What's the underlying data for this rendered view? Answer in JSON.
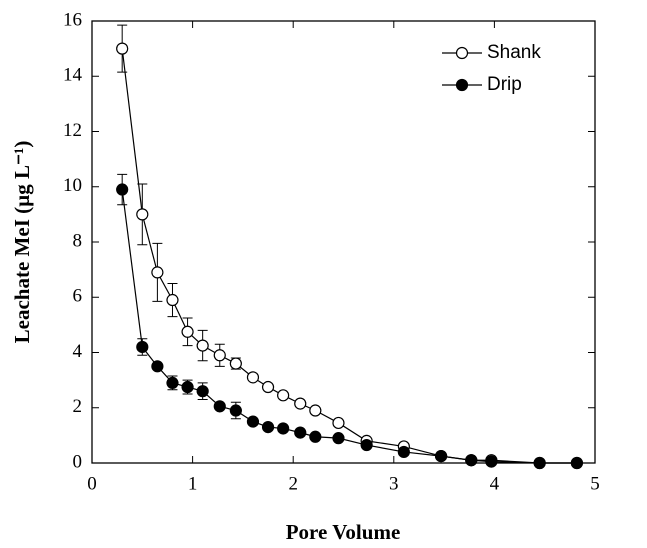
{
  "chart_data": {
    "type": "line",
    "x_label": "Pore Volume",
    "y_label": "Leachate MeI (µg L⁻¹)",
    "x": [
      0.3,
      0.5,
      0.65,
      0.8,
      0.95,
      1.1,
      1.27,
      1.43,
      1.6,
      1.75,
      1.9,
      2.07,
      2.22,
      2.45,
      2.73,
      3.1,
      3.47,
      3.77,
      3.97,
      4.45,
      4.82
    ],
    "series": [
      {
        "name": "Shank",
        "color": "#000000",
        "marker": "open",
        "values": [
          15.0,
          9.0,
          6.9,
          5.9,
          4.75,
          4.25,
          3.9,
          3.6,
          3.1,
          2.75,
          2.45,
          2.15,
          1.9,
          1.45,
          0.8,
          0.6,
          0.25,
          0.1,
          0.1,
          0,
          0
        ],
        "errors": [
          0.85,
          1.1,
          1.05,
          0.6,
          0.5,
          0.55,
          0.4,
          0.2,
          0.1,
          0.1,
          0.1,
          0.1,
          0.1,
          0.1,
          0.1,
          0.1,
          null,
          null,
          null,
          null,
          null
        ]
      },
      {
        "name": "Drip",
        "color": "#000000",
        "marker": "filled",
        "values": [
          9.9,
          4.2,
          3.5,
          2.9,
          2.75,
          2.6,
          2.05,
          1.9,
          1.5,
          1.3,
          1.25,
          1.1,
          0.95,
          0.9,
          0.65,
          0.4,
          0.25,
          0.1,
          0.05,
          0,
          0
        ],
        "errors": [
          0.55,
          0.3,
          null,
          0.25,
          0.25,
          0.3,
          null,
          0.3,
          null,
          null,
          null,
          null,
          null,
          null,
          null,
          null,
          null,
          null,
          null,
          null,
          null
        ]
      }
    ],
    "xlim": [
      0,
      5
    ],
    "xticks": [
      0,
      1,
      2,
      3,
      4,
      5
    ],
    "ylim": [
      0,
      16
    ],
    "yticks": [
      0,
      2,
      4,
      6,
      8,
      10,
      12,
      14,
      16
    ],
    "legend": "top-right"
  }
}
